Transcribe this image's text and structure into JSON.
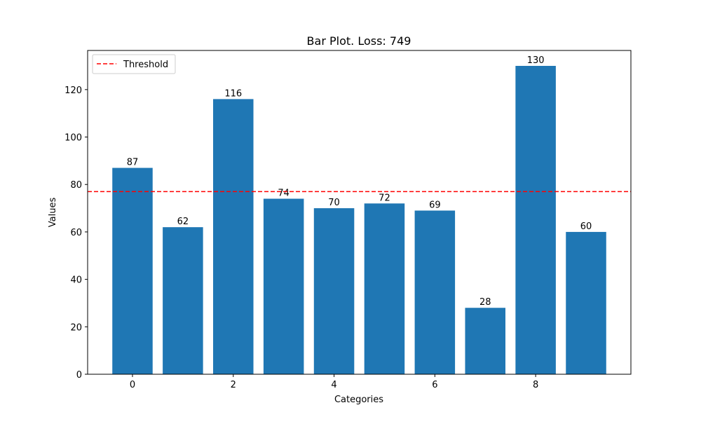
{
  "chart_data": {
    "type": "bar",
    "title": "Bar Plot. Loss: 749",
    "xlabel": "Categories",
    "ylabel": "Values",
    "x": [
      0,
      1,
      2,
      3,
      4,
      5,
      6,
      7,
      8,
      9
    ],
    "values": [
      87,
      62,
      116,
      74,
      70,
      72,
      69,
      28,
      130,
      60
    ],
    "xticks": [
      0,
      2,
      4,
      6,
      8
    ],
    "yticks": [
      0,
      20,
      40,
      60,
      80,
      100,
      120
    ],
    "xlim": [
      -0.89,
      9.89
    ],
    "ylim": [
      0,
      136.5
    ],
    "threshold": {
      "value": 77,
      "label": "Threshold",
      "color": "#ff0000",
      "style": "dashed"
    },
    "bar_color": "#1f77b4",
    "legend_position": "top-left",
    "grid": false
  }
}
